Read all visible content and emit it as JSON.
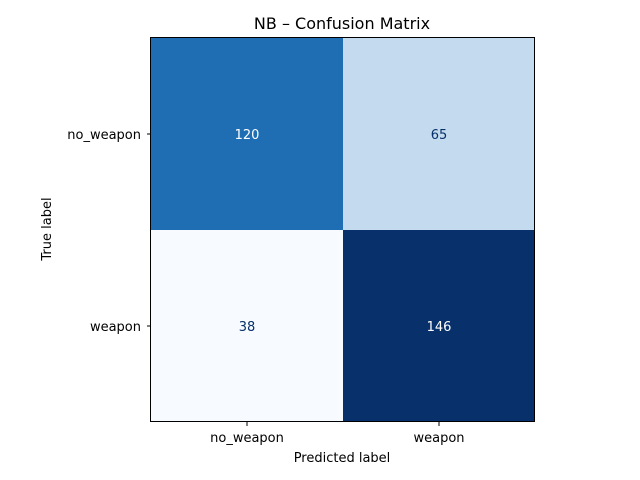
{
  "chart_data": {
    "type": "heatmap",
    "title": "NB – Confusion Matrix",
    "xlabel": "Predicted label",
    "ylabel": "True label",
    "x_categories": [
      "no_weapon",
      "weapon"
    ],
    "y_categories": [
      "no_weapon",
      "weapon"
    ],
    "values": [
      [
        120,
        65
      ],
      [
        38,
        146
      ]
    ],
    "colormap": "Blues",
    "colorbar": false,
    "cell_colors": [
      [
        "#1f6eb3",
        "#c4daee"
      ],
      [
        "#f7fbff",
        "#08306b"
      ]
    ],
    "text_colors": [
      [
        "#ffffff",
        "#08306b"
      ],
      [
        "#08306b",
        "#ffffff"
      ]
    ]
  }
}
